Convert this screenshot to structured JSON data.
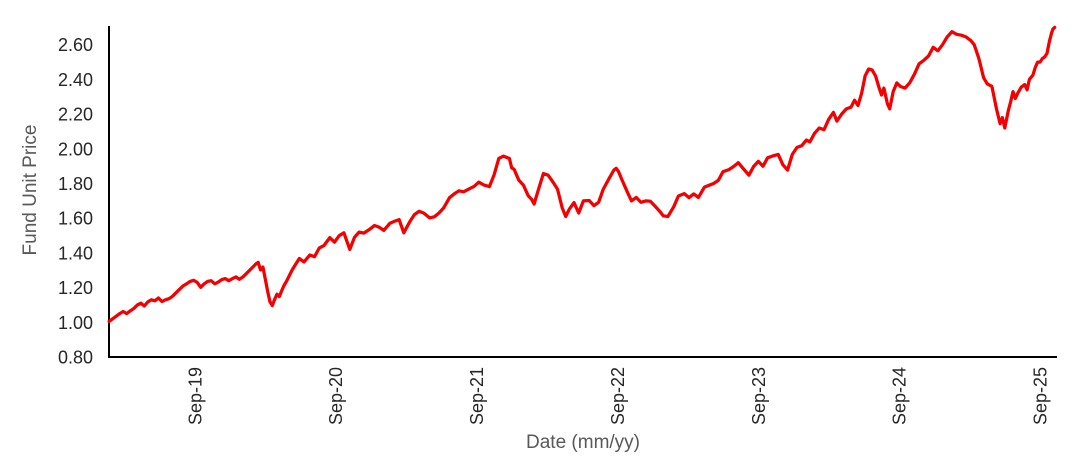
{
  "colors": {
    "background": "#ffffff",
    "axis_line": "#000000",
    "tick_label": "#262626",
    "axis_title": "#595959",
    "line": "#f40000"
  },
  "chart_data": {
    "type": "line",
    "title": "",
    "xlabel": "Date (mm/yy)",
    "ylabel": "Fund Unit Price",
    "grid": false,
    "legend_position": "none",
    "x_range_months": [
      -0.31,
      80.45
    ],
    "y_range": [
      0.8,
      2.708
    ],
    "x_ticks": [
      {
        "m": 7,
        "label": "Sep-19"
      },
      {
        "m": 19,
        "label": "Sep-20"
      },
      {
        "m": 31,
        "label": "Sep-21"
      },
      {
        "m": 43,
        "label": "Sep-22"
      },
      {
        "m": 55,
        "label": "Sep-23"
      },
      {
        "m": 67,
        "label": "Sep-24"
      },
      {
        "m": 79,
        "label": "Sep-25"
      }
    ],
    "y_ticks": [
      {
        "value": 0.8,
        "label": "0.80"
      },
      {
        "value": 1.0,
        "label": "1.00"
      },
      {
        "value": 1.2,
        "label": "1.20"
      },
      {
        "value": 1.4,
        "label": "1.40"
      },
      {
        "value": 1.6,
        "label": "1.60"
      },
      {
        "value": 1.8,
        "label": "1.80"
      },
      {
        "value": 2.0,
        "label": "2.00"
      },
      {
        "value": 2.2,
        "label": "2.20"
      },
      {
        "value": 2.4,
        "label": "2.40"
      },
      {
        "value": 2.6,
        "label": "2.60"
      }
    ],
    "series": [
      {
        "name": "Fund Unit Price",
        "color": "#f40000",
        "stroke_width": 3.25,
        "points": [
          [
            -0.3,
            1.005
          ],
          [
            0,
            1.02
          ],
          [
            0.3,
            1.035
          ],
          [
            0.6,
            1.05
          ],
          [
            0.9,
            1.062
          ],
          [
            1.2,
            1.05
          ],
          [
            1.5,
            1.066
          ],
          [
            1.8,
            1.08
          ],
          [
            2.1,
            1.1
          ],
          [
            2.4,
            1.11
          ],
          [
            2.7,
            1.094
          ],
          [
            3,
            1.118
          ],
          [
            3.3,
            1.13
          ],
          [
            3.6,
            1.124
          ],
          [
            3.9,
            1.14
          ],
          [
            4.2,
            1.12
          ],
          [
            4.5,
            1.13
          ],
          [
            4.8,
            1.136
          ],
          [
            5.1,
            1.15
          ],
          [
            5.4,
            1.17
          ],
          [
            5.7,
            1.19
          ],
          [
            6,
            1.21
          ],
          [
            6.3,
            1.222
          ],
          [
            6.6,
            1.236
          ],
          [
            6.9,
            1.242
          ],
          [
            7.2,
            1.23
          ],
          [
            7.5,
            1.202
          ],
          [
            7.8,
            1.222
          ],
          [
            8.1,
            1.236
          ],
          [
            8.4,
            1.24
          ],
          [
            8.7,
            1.222
          ],
          [
            9,
            1.232
          ],
          [
            9.3,
            1.246
          ],
          [
            9.6,
            1.252
          ],
          [
            9.9,
            1.24
          ],
          [
            10.2,
            1.252
          ],
          [
            10.5,
            1.262
          ],
          [
            10.8,
            1.248
          ],
          [
            11.1,
            1.262
          ],
          [
            11.4,
            1.282
          ],
          [
            11.7,
            1.302
          ],
          [
            12,
            1.322
          ],
          [
            12.2,
            1.336
          ],
          [
            12.4,
            1.346
          ],
          [
            12.6,
            1.302
          ],
          [
            12.8,
            1.318
          ],
          [
            13,
            1.252
          ],
          [
            13.2,
            1.18
          ],
          [
            13.4,
            1.12
          ],
          [
            13.6,
            1.096
          ],
          [
            13.8,
            1.132
          ],
          [
            14,
            1.162
          ],
          [
            14.2,
            1.148
          ],
          [
            14.4,
            1.182
          ],
          [
            14.6,
            1.212
          ],
          [
            14.8,
            1.236
          ],
          [
            15,
            1.262
          ],
          [
            15.3,
            1.302
          ],
          [
            15.6,
            1.336
          ],
          [
            15.9,
            1.368
          ],
          [
            16.3,
            1.348
          ],
          [
            16.8,
            1.388
          ],
          [
            17.2,
            1.378
          ],
          [
            17.6,
            1.428
          ],
          [
            18,
            1.442
          ],
          [
            18.5,
            1.488
          ],
          [
            18.9,
            1.462
          ],
          [
            19.3,
            1.5
          ],
          [
            19.7,
            1.516
          ],
          [
            20.2,
            1.42
          ],
          [
            20.6,
            1.49
          ],
          [
            21,
            1.52
          ],
          [
            21.4,
            1.514
          ],
          [
            21.9,
            1.536
          ],
          [
            22.3,
            1.558
          ],
          [
            22.7,
            1.548
          ],
          [
            23.1,
            1.53
          ],
          [
            23.6,
            1.57
          ],
          [
            24,
            1.582
          ],
          [
            24.4,
            1.592
          ],
          [
            24.8,
            1.516
          ],
          [
            25.3,
            1.578
          ],
          [
            25.7,
            1.62
          ],
          [
            26.1,
            1.64
          ],
          [
            26.5,
            1.63
          ],
          [
            27,
            1.602
          ],
          [
            27.4,
            1.608
          ],
          [
            27.8,
            1.63
          ],
          [
            28.2,
            1.66
          ],
          [
            28.7,
            1.718
          ],
          [
            29.1,
            1.74
          ],
          [
            29.5,
            1.758
          ],
          [
            29.9,
            1.752
          ],
          [
            30.4,
            1.77
          ],
          [
            30.8,
            1.784
          ],
          [
            31.2,
            1.808
          ],
          [
            31.6,
            1.792
          ],
          [
            32.1,
            1.782
          ],
          [
            32.5,
            1.85
          ],
          [
            32.9,
            1.944
          ],
          [
            33.3,
            1.958
          ],
          [
            33.8,
            1.944
          ],
          [
            34,
            1.89
          ],
          [
            34.2,
            1.882
          ],
          [
            34.6,
            1.82
          ],
          [
            35,
            1.79
          ],
          [
            35.4,
            1.73
          ],
          [
            35.7,
            1.708
          ],
          [
            35.9,
            1.682
          ],
          [
            36.3,
            1.77
          ],
          [
            36.7,
            1.858
          ],
          [
            37.1,
            1.848
          ],
          [
            37.5,
            1.81
          ],
          [
            37.9,
            1.768
          ],
          [
            38.3,
            1.66
          ],
          [
            38.6,
            1.61
          ],
          [
            38.9,
            1.652
          ],
          [
            39.3,
            1.69
          ],
          [
            39.7,
            1.63
          ],
          [
            40.1,
            1.7
          ],
          [
            40.6,
            1.702
          ],
          [
            41,
            1.672
          ],
          [
            41.4,
            1.692
          ],
          [
            41.8,
            1.768
          ],
          [
            42.3,
            1.83
          ],
          [
            42.7,
            1.878
          ],
          [
            42.9,
            1.888
          ],
          [
            43.1,
            1.868
          ],
          [
            43.4,
            1.82
          ],
          [
            43.8,
            1.758
          ],
          [
            44.2,
            1.7
          ],
          [
            44.6,
            1.72
          ],
          [
            45,
            1.692
          ],
          [
            45.4,
            1.7
          ],
          [
            45.8,
            1.698
          ],
          [
            46.2,
            1.67
          ],
          [
            46.6,
            1.64
          ],
          [
            46.9,
            1.614
          ],
          [
            47.3,
            1.61
          ],
          [
            47.8,
            1.666
          ],
          [
            48.2,
            1.728
          ],
          [
            48.7,
            1.742
          ],
          [
            49.1,
            1.718
          ],
          [
            49.5,
            1.74
          ],
          [
            49.9,
            1.72
          ],
          [
            50.4,
            1.778
          ],
          [
            50.8,
            1.79
          ],
          [
            51.2,
            1.8
          ],
          [
            51.6,
            1.818
          ],
          [
            52,
            1.868
          ],
          [
            52.5,
            1.88
          ],
          [
            52.9,
            1.898
          ],
          [
            53.3,
            1.92
          ],
          [
            53.7,
            1.888
          ],
          [
            54.2,
            1.848
          ],
          [
            54.6,
            1.898
          ],
          [
            55,
            1.928
          ],
          [
            55.4,
            1.9
          ],
          [
            55.8,
            1.948
          ],
          [
            56.2,
            1.958
          ],
          [
            56.7,
            1.968
          ],
          [
            57.1,
            1.908
          ],
          [
            57.5,
            1.878
          ],
          [
            57.9,
            1.968
          ],
          [
            58.3,
            2.008
          ],
          [
            58.7,
            2.018
          ],
          [
            59.1,
            2.05
          ],
          [
            59.4,
            2.04
          ],
          [
            59.8,
            2.09
          ],
          [
            60.2,
            2.12
          ],
          [
            60.6,
            2.11
          ],
          [
            61,
            2.17
          ],
          [
            61.4,
            2.21
          ],
          [
            61.7,
            2.16
          ],
          [
            62.1,
            2.2
          ],
          [
            62.5,
            2.23
          ],
          [
            62.9,
            2.24
          ],
          [
            63.2,
            2.28
          ],
          [
            63.5,
            2.25
          ],
          [
            63.8,
            2.32
          ],
          [
            64.1,
            2.42
          ],
          [
            64.4,
            2.46
          ],
          [
            64.7,
            2.455
          ],
          [
            65,
            2.42
          ],
          [
            65.3,
            2.35
          ],
          [
            65.5,
            2.31
          ],
          [
            65.7,
            2.35
          ],
          [
            66,
            2.26
          ],
          [
            66.2,
            2.23
          ],
          [
            66.5,
            2.33
          ],
          [
            66.8,
            2.38
          ],
          [
            67.1,
            2.36
          ],
          [
            67.5,
            2.35
          ],
          [
            67.9,
            2.38
          ],
          [
            68.3,
            2.43
          ],
          [
            68.7,
            2.49
          ],
          [
            69.1,
            2.51
          ],
          [
            69.5,
            2.535
          ],
          [
            69.9,
            2.585
          ],
          [
            70.3,
            2.565
          ],
          [
            70.7,
            2.6
          ],
          [
            71.1,
            2.645
          ],
          [
            71.5,
            2.675
          ],
          [
            71.9,
            2.66
          ],
          [
            72.3,
            2.655
          ],
          [
            72.7,
            2.645
          ],
          [
            73.1,
            2.625
          ],
          [
            73.4,
            2.6
          ],
          [
            73.8,
            2.52
          ],
          [
            74.2,
            2.41
          ],
          [
            74.5,
            2.375
          ],
          [
            74.9,
            2.36
          ],
          [
            75.3,
            2.23
          ],
          [
            75.6,
            2.145
          ],
          [
            75.8,
            2.18
          ],
          [
            76,
            2.12
          ],
          [
            76.3,
            2.22
          ],
          [
            76.5,
            2.27
          ],
          [
            76.7,
            2.33
          ],
          [
            76.9,
            2.29
          ],
          [
            77.1,
            2.32
          ],
          [
            77.4,
            2.355
          ],
          [
            77.7,
            2.37
          ],
          [
            77.9,
            2.34
          ],
          [
            78.1,
            2.4
          ],
          [
            78.4,
            2.425
          ],
          [
            78.6,
            2.47
          ],
          [
            78.8,
            2.5
          ],
          [
            79,
            2.5
          ],
          [
            79.2,
            2.52
          ],
          [
            79.4,
            2.53
          ],
          [
            79.6,
            2.55
          ],
          [
            79.8,
            2.62
          ],
          [
            80,
            2.67
          ],
          [
            80.1,
            2.69
          ],
          [
            80.25,
            2.7
          ]
        ]
      }
    ]
  }
}
